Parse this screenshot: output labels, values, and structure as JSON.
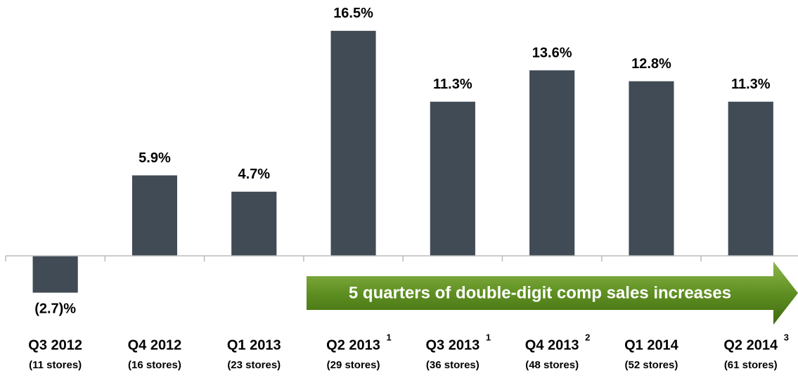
{
  "chart_data": {
    "type": "bar",
    "categories": [
      "Q3 2012",
      "Q4 2012",
      "Q1 2013",
      "Q2 2013",
      "Q3 2013",
      "Q4 2013",
      "Q1 2014",
      "Q2 2014"
    ],
    "footnotes": [
      null,
      null,
      null,
      "1",
      "1",
      "2",
      null,
      "3"
    ],
    "sublabels": [
      "(11 stores)",
      "(16 stores)",
      "(23 stores)",
      "(29 stores)",
      "(36 stores)",
      "(48 stores)",
      "(52 stores)",
      "(61 stores)"
    ],
    "values": [
      -2.7,
      5.9,
      4.7,
      16.5,
      11.3,
      13.6,
      12.8,
      11.3
    ],
    "value_labels": [
      "(2.7)%",
      "5.9%",
      "4.7%",
      "16.5%",
      "11.3%",
      "13.6%",
      "12.8%",
      "11.3%"
    ],
    "color": "#414b55",
    "ylim": [
      -4,
      18
    ],
    "annotation": "5 quarters of double-digit comp sales increases"
  }
}
